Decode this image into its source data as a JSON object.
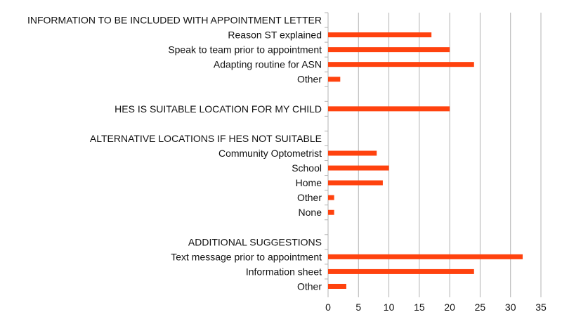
{
  "chart_data": {
    "type": "bar",
    "orientation": "horizontal",
    "title": "",
    "xlabel": "",
    "ylabel": "",
    "xlim": [
      0,
      35
    ],
    "x_ticks": [
      0,
      5,
      10,
      15,
      20,
      25,
      30,
      35
    ],
    "grid": true,
    "legend": "none",
    "bar_color": "#ff420e",
    "categories": [
      "INFORMATION TO BE INCLUDED WITH APPOINTMENT LETTER",
      "Reason ST explained",
      "Speak to team prior to appointment",
      "Adapting routine for ASN",
      "Other",
      "",
      "HES IS SUITABLE LOCATION FOR MY CHILD",
      "",
      "ALTERNATIVE LOCATIONS IF HES NOT SUITABLE",
      "Community Optometrist",
      "School",
      "Home",
      "Other",
      "None",
      "",
      "ADDITIONAL SUGGESTIONS",
      "Text message prior to appointment",
      "Information sheet",
      "Other"
    ],
    "values": [
      null,
      17,
      20,
      24,
      2,
      null,
      20,
      null,
      null,
      8,
      10,
      9,
      1,
      1,
      null,
      null,
      32,
      24,
      3
    ]
  }
}
